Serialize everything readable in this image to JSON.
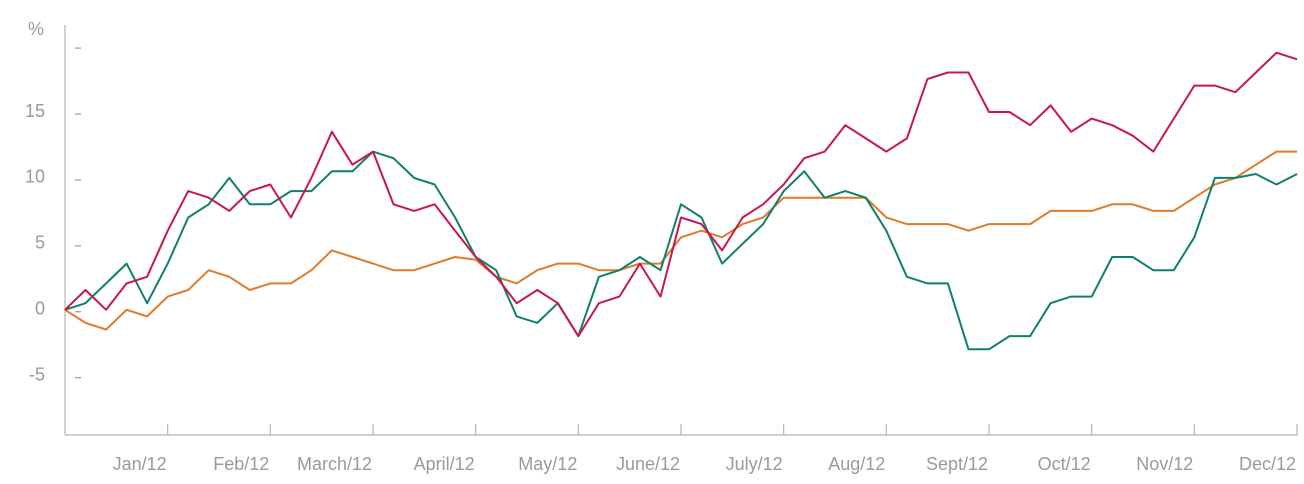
{
  "chart_data": {
    "type": "line",
    "x": [
      0,
      0.2,
      0.4,
      0.6,
      0.8,
      1,
      1.2,
      1.4,
      1.6,
      1.8,
      2,
      2.2,
      2.4,
      2.6,
      2.8,
      3,
      3.2,
      3.4,
      3.6,
      3.8,
      4,
      4.2,
      4.4,
      4.6,
      4.8,
      5,
      5.2,
      5.4,
      5.6,
      5.8,
      6,
      6.2,
      6.4,
      6.6,
      6.8,
      7,
      7.2,
      7.4,
      7.6,
      7.8,
      8,
      8.2,
      8.4,
      8.6,
      8.8,
      9,
      9.2,
      9.4,
      9.6,
      9.8,
      10,
      10.2,
      10.4,
      10.6,
      10.8,
      11,
      11.2,
      11.4,
      11.6,
      11.8,
      12
    ],
    "series": [
      {
        "color": "#c8174f",
        "values": [
          0,
          1.5,
          0,
          2,
          2.5,
          6,
          9,
          8.5,
          7.5,
          9,
          9.5,
          7,
          10,
          13.5,
          11,
          12,
          8,
          7.5,
          8,
          6,
          4,
          2.5,
          0.5,
          1.5,
          0.5,
          -2,
          0.5,
          1,
          3.5,
          1,
          7,
          6.5,
          4.5,
          7,
          8,
          9.5,
          11.5,
          12,
          14,
          13,
          12,
          13,
          17.5,
          18,
          18,
          15,
          15,
          14,
          15.5,
          13.5,
          14.5,
          14,
          13.2,
          12,
          14.5,
          17,
          17,
          16.5,
          18,
          19.5,
          19
        ]
      },
      {
        "color": "#0f7f6e",
        "values": [
          0,
          0.5,
          2,
          3.5,
          0.5,
          3.5,
          7,
          8,
          10,
          8,
          8,
          9,
          9,
          10.5,
          10.5,
          12,
          11.5,
          10,
          9.5,
          7,
          4,
          3,
          -0.5,
          -1,
          0.5,
          -2,
          2.5,
          3,
          4,
          3,
          8,
          7,
          3.5,
          5,
          6.5,
          9,
          10.5,
          8.5,
          9,
          8.5,
          6,
          2.5,
          2,
          2,
          -3,
          -3,
          -2,
          -2,
          0.5,
          1,
          1,
          4,
          4,
          3,
          3,
          5.5,
          10,
          10,
          10.3,
          9.5,
          10.3
        ]
      },
      {
        "color": "#e07b29",
        "values": [
          0,
          -1,
          -1.5,
          0,
          -0.5,
          1,
          1.5,
          3,
          2.5,
          1.5,
          2,
          2,
          3,
          4.5,
          4,
          3.5,
          3,
          3,
          3.5,
          4,
          3.8,
          2.5,
          2,
          3,
          3.5,
          3.5,
          3,
          3,
          3.5,
          3.5,
          5.5,
          6,
          5.5,
          6.5,
          7,
          8.5,
          8.5,
          8.5,
          8.5,
          8.5,
          7,
          6.5,
          6.5,
          6.5,
          6,
          6.5,
          6.5,
          6.5,
          7.5,
          7.5,
          7.5,
          8,
          8,
          7.5,
          7.5,
          8.5,
          9.5,
          10,
          11,
          12,
          12
        ]
      }
    ],
    "xlim": [
      0,
      12
    ],
    "xticks": [
      {
        "value": 1,
        "label": "Jan/12"
      },
      {
        "value": 2,
        "label": "Feb/12"
      },
      {
        "value": 3,
        "label": "March/12"
      },
      {
        "value": 4,
        "label": "April/12"
      },
      {
        "value": 5,
        "label": "May/12"
      },
      {
        "value": 6,
        "label": "June/12"
      },
      {
        "value": 7,
        "label": "July/12"
      },
      {
        "value": 8,
        "label": "Aug/12"
      },
      {
        "value": 9,
        "label": "Sept/12"
      },
      {
        "value": 10,
        "label": "Oct/12"
      },
      {
        "value": 11,
        "label": "Nov/12"
      },
      {
        "value": 12,
        "label": "Dec/12"
      }
    ],
    "ylim": [
      -9.5,
      21.6
    ],
    "yticks": [
      -5,
      0,
      5,
      10,
      15,
      {
        "value": 20,
        "label": "%"
      }
    ]
  }
}
